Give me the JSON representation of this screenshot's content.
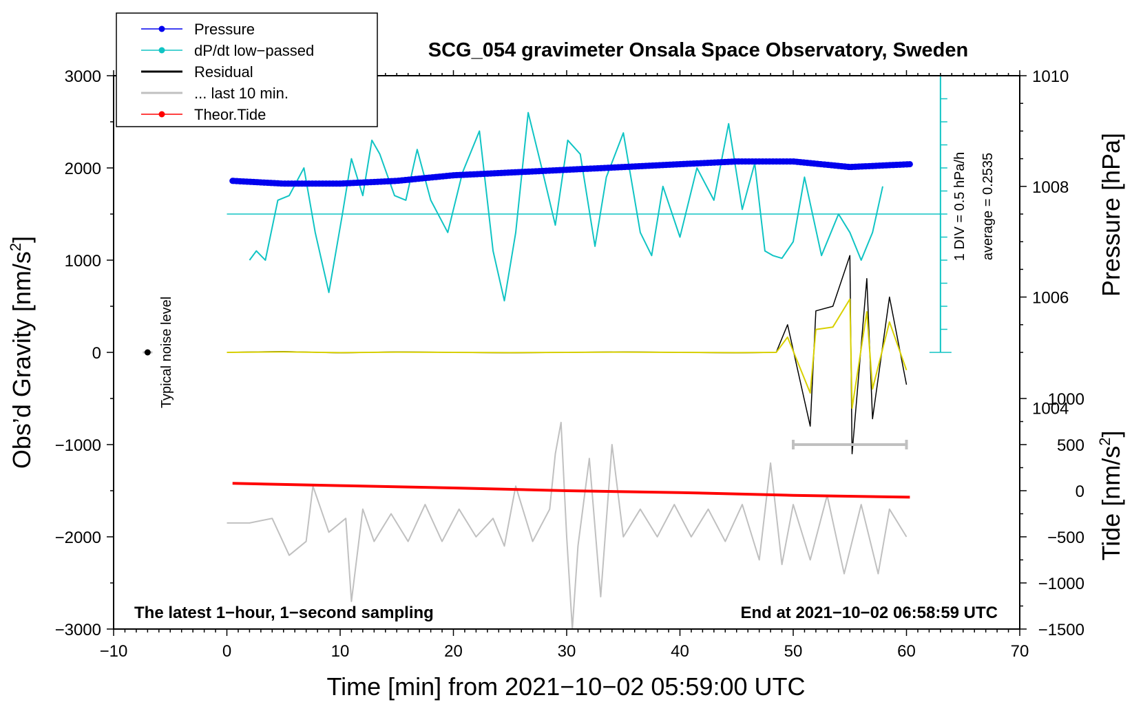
{
  "chart_data": {
    "type": "line",
    "title": "SCG_054 gravimeter Onsala Space Observatory, Sweden",
    "xlabel": "Time [min] from 2021−10−02 05:59:00 UTC",
    "ylabel_left": "Obs’d Gravity [nm/s",
    "ylabel_left_sup": "2",
    "ylabel_left_close": "]",
    "ylabel_right_top": "Pressure [hPa]",
    "ylabel_right_bottom": "Tide [nm/s",
    "ylabel_right_bottom_sup": "2",
    "ylabel_right_bottom_close": "]",
    "xlim": [
      -10,
      70
    ],
    "ylim_left": [
      -3000,
      3000
    ],
    "x_ticks": [
      "−10",
      "0",
      "10",
      "20",
      "30",
      "40",
      "50",
      "60",
      "70"
    ],
    "x_tick_values": [
      -10,
      0,
      10,
      20,
      30,
      40,
      50,
      60,
      70
    ],
    "y_left_ticks": [
      "3000",
      "2000",
      "1000",
      "0",
      "−1000",
      "−2000",
      "−3000"
    ],
    "y_left_tick_values": [
      3000,
      2000,
      1000,
      0,
      -1000,
      -2000,
      -3000
    ],
    "pressure_axis": {
      "ticks": [
        "1010",
        "1008",
        "1006",
        "1004"
      ],
      "tick_values": [
        1010,
        1008,
        1006,
        1004
      ],
      "gravity_at_1000hPa": -3000,
      "gravity_per_hPa": 600
    },
    "tide_axis": {
      "ticks": [
        "1000",
        "500",
        "0",
        "−500",
        "−1000",
        "−1500"
      ],
      "tick_values": [
        1000,
        500,
        0,
        -500,
        -1000,
        -1500
      ],
      "gravity_at_zero": -1500,
      "scale": 1
    },
    "legend": [
      {
        "label": "Pressure",
        "color": "#0000ee",
        "marker": true
      },
      {
        "label": "dP/dt low−passed",
        "color": "#10c4c4",
        "marker": true
      },
      {
        "label": "Residual",
        "color": "#000000",
        "marker": false
      },
      {
        "label": "... last 10 min.",
        "color": "#c0c0c0",
        "marker": false
      },
      {
        "label": "Theor.Tide",
        "color": "#ff0000",
        "marker": true
      }
    ],
    "annotations": {
      "bottom_left": "The latest 1−hour, 1−second sampling",
      "bottom_right": "End at 2021−10−02 06:58:59 UTC",
      "noise_label": "Typical noise level",
      "dpdt_scale": "1 DIV = 0.5 hPa/h",
      "dpdt_average": "average = 0.2535"
    },
    "dpdt_baseline_gravity": 1500,
    "noise_marker": {
      "x": -7,
      "y": 0
    },
    "last10_bar": {
      "x_start": 50,
      "x_end": 60,
      "y": -1000
    },
    "series": [
      {
        "name": "Pressure",
        "units": "hPa",
        "color": "#0000ee",
        "x": [
          0.5,
          5,
          10,
          15,
          20,
          25,
          30,
          35,
          40,
          45,
          50,
          55,
          60.3
        ],
        "values": [
          1008.1,
          1008.05,
          1008.05,
          1008.1,
          1008.2,
          1008.25,
          1008.3,
          1008.35,
          1008.4,
          1008.45,
          1008.45,
          1008.35,
          1008.4
        ]
      },
      {
        "name": "dP/dt low−passed",
        "units": "gravity-plot units",
        "color": "#10c4c4",
        "x": [
          2,
          2.6,
          3.4,
          4.5,
          5.5,
          6.8,
          7.8,
          9.0,
          10.2,
          11,
          12,
          12.8,
          13.5,
          14.8,
          15.8,
          16.8,
          18,
          19.5,
          20.8,
          22.3,
          23.5,
          24.5,
          25.5,
          26.6,
          27.8,
          29,
          30.1,
          31.2,
          32.5,
          33.5,
          35,
          36.5,
          37.5,
          38.5,
          40,
          41.5,
          43,
          44.3,
          45.5,
          46.6,
          47.5,
          48.2,
          49,
          50,
          51,
          52.5,
          54,
          55,
          56,
          57,
          57.9
        ],
        "values": [
          1000,
          1100,
          1000,
          1650,
          1700,
          2000,
          1300,
          650,
          1500,
          2100,
          1700,
          2300,
          2150,
          1700,
          1650,
          2200,
          1650,
          1300,
          1950,
          2400,
          1100,
          560,
          1300,
          2600,
          2000,
          1380,
          2300,
          2150,
          1150,
          1900,
          2380,
          1300,
          1050,
          1800,
          1250,
          2000,
          1650,
          2480,
          1550,
          2050,
          1100,
          1050,
          1020,
          1200,
          1900,
          1050,
          1500,
          1300,
          1000,
          1300,
          1800
        ]
      },
      {
        "name": "Residual",
        "units": "nm/s2",
        "color": "#000000",
        "x": [
          0,
          5,
          10,
          15,
          20,
          25,
          30,
          35,
          40,
          45,
          48.5,
          49.5,
          51.5,
          52,
          53.5,
          55,
          55.2,
          56.5,
          57,
          58.5,
          60
        ],
        "values": [
          0,
          10,
          -5,
          5,
          0,
          -5,
          0,
          5,
          0,
          -5,
          0,
          300,
          -800,
          450,
          500,
          1050,
          -1100,
          800,
          -720,
          600,
          -350
        ]
      },
      {
        "name": "... last 10 min.",
        "units": "plotted at gravity offset -1850",
        "color": "#c0c0c0",
        "x": [
          0,
          2,
          4,
          5.5,
          7,
          7.6,
          9,
          10.5,
          11,
          12,
          13,
          14.5,
          16,
          17.5,
          19,
          20.5,
          22,
          23.5,
          24.5,
          25.5,
          27,
          28.5,
          29,
          29.5,
          30,
          30.5,
          31,
          32,
          33,
          34,
          35,
          36.5,
          38,
          39.5,
          41,
          42.5,
          44,
          45.5,
          47,
          48,
          49,
          50,
          51.5,
          53,
          54.5,
          56,
          57.5,
          58.5,
          60
        ],
        "values": [
          -1850,
          -1850,
          -1800,
          -2200,
          -2050,
          -1450,
          -1950,
          -1800,
          -2700,
          -1700,
          -2050,
          -1750,
          -2050,
          -1650,
          -2050,
          -1700,
          -2000,
          -1800,
          -2100,
          -1450,
          -2050,
          -1700,
          -1100,
          -760,
          -2000,
          -3000,
          -2100,
          -1150,
          -2650,
          -1000,
          -2000,
          -1700,
          -2000,
          -1650,
          -2000,
          -1700,
          -2050,
          -1650,
          -2250,
          -1200,
          -2300,
          -1650,
          -2250,
          -1550,
          -2400,
          -1650,
          -2400,
          -1700,
          -2000
        ]
      },
      {
        "name": "Theor.Tide",
        "units": "nm/s2",
        "color": "#ff0000",
        "x": [
          0.5,
          10,
          20,
          30,
          40,
          50,
          60.3
        ],
        "values": [
          80,
          55,
          30,
          0,
          -20,
          -50,
          -70
        ]
      }
    ]
  }
}
